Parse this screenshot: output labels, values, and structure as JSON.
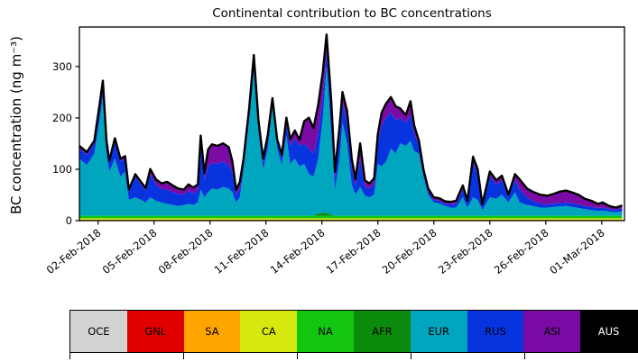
{
  "figure": {
    "title": "Continental contribution to BC concentrations",
    "ylabel": "BC concentration (ng m⁻³)"
  },
  "legend": {
    "entries": [
      {
        "label": "OCE",
        "color": "#d3d3d3",
        "text_color": "#000000"
      },
      {
        "label": "GNL",
        "color": "#e00000",
        "text_color": "#000000"
      },
      {
        "label": "SA",
        "color": "#ffa500",
        "text_color": "#000000"
      },
      {
        "label": "CA",
        "color": "#d6e80e",
        "text_color": "#000000"
      },
      {
        "label": "NA",
        "color": "#11c511",
        "text_color": "#000000"
      },
      {
        "label": "AFR",
        "color": "#0b8a0b",
        "text_color": "#000000"
      },
      {
        "label": "EUR",
        "color": "#00a5be",
        "text_color": "#000000"
      },
      {
        "label": "RUS",
        "color": "#0834e0",
        "text_color": "#000000"
      },
      {
        "label": "ASI",
        "color": "#7a0ba5",
        "text_color": "#000000"
      },
      {
        "label": "AUS",
        "color": "#000000",
        "text_color": "#ffffff"
      }
    ]
  },
  "chart_data": {
    "type": "area",
    "stacked": true,
    "title": "Continental contribution to BC concentrations",
    "xlabel": "",
    "ylabel": "BC concentration (ng m⁻³)",
    "grid": false,
    "legend_position": "bottom",
    "outline_color": "#000000",
    "ylim": [
      0,
      377
    ],
    "yticks": [
      0,
      100,
      200,
      300
    ],
    "xlim_days": [
      0,
      29.22
    ],
    "xtick_days": [
      1,
      4,
      7,
      10,
      13,
      16,
      19,
      22,
      25,
      28
    ],
    "xtick_labels": [
      "02-Feb-2018",
      "05-Feb-2018",
      "08-Feb-2018",
      "11-Feb-2018",
      "14-Feb-2018",
      "17-Feb-2018",
      "20-Feb-2018",
      "23-Feb-2018",
      "26-Feb-2018",
      "01-Mar-2018"
    ],
    "x_days": [
      0,
      0.4,
      0.8,
      1.1,
      1.26,
      1.45,
      1.6,
      1.9,
      2.2,
      2.45,
      2.65,
      3.0,
      3.3,
      3.55,
      3.8,
      4.1,
      4.4,
      4.7,
      5.0,
      5.3,
      5.6,
      5.85,
      6.1,
      6.35,
      6.5,
      6.7,
      6.9,
      7.1,
      7.4,
      7.7,
      8.0,
      8.2,
      8.4,
      8.6,
      8.8,
      9.1,
      9.35,
      9.6,
      9.85,
      10.1,
      10.35,
      10.6,
      10.85,
      11.1,
      11.3,
      11.55,
      11.8,
      12.05,
      12.3,
      12.55,
      12.8,
      13.05,
      13.25,
      13.5,
      13.7,
      13.95,
      14.1,
      14.35,
      14.6,
      14.8,
      15.05,
      15.3,
      15.55,
      15.8,
      16.0,
      16.2,
      16.45,
      16.7,
      16.95,
      17.2,
      17.5,
      17.75,
      17.95,
      18.2,
      18.45,
      18.7,
      19.0,
      19.3,
      19.6,
      19.9,
      20.2,
      20.55,
      20.8,
      21.1,
      21.35,
      21.6,
      22.0,
      22.35,
      22.65,
      23.0,
      23.35,
      23.6,
      24.0,
      24.3,
      24.7,
      25.1,
      25.45,
      25.75,
      26.1,
      26.45,
      26.75,
      27.1,
      27.45,
      27.8,
      28.05,
      28.4,
      28.75,
      29.1
    ],
    "series": [
      {
        "name": "OCE",
        "color": "#d3d3d3",
        "values": 0.3
      },
      {
        "name": "GNL",
        "color": "#e00000",
        "values": 0.2
      },
      {
        "name": "SA",
        "color": "#ffa500",
        "values": 1.5
      },
      {
        "name": "CA",
        "color": "#d6e80e",
        "values": 2.5
      },
      {
        "name": "NA",
        "color": "#11c511",
        "values": 5
      },
      {
        "name": "AFR",
        "color": "#0b8a0b",
        "values": {
          "default": 0,
          "overrides": {
            "50": 4,
            "51": 6,
            "52": 5,
            "53": 2
          }
        }
      },
      {
        "name": "EUR",
        "color": "#00a5be",
        "values": [
          111,
          99,
          121,
          191,
          231,
          121,
          86,
          111,
          76,
          86,
          31,
          36,
          31,
          26,
          36,
          29,
          26,
          23,
          21,
          19,
          21,
          23,
          21,
          26,
          51,
          36,
          46,
          53,
          51,
          56,
          53,
          46,
          26,
          36,
          91,
          186,
          281,
          161,
          91,
          131,
          213,
          131,
          99,
          156,
          101,
          111,
          96,
          101,
          81,
          76,
          107,
          185,
          286,
          159,
          51,
          111,
          181,
          141,
          61,
          41,
          56,
          39,
          36,
          41,
          101,
          96,
          106,
          131,
          121,
          141,
          136,
          146,
          126,
          121,
          76,
          41,
          26,
          24,
          19,
          16,
          16,
          36,
          16,
          36,
          31,
          11,
          36,
          33,
          41,
          26,
          46,
          26,
          21,
          19,
          16,
          16,
          17,
          18,
          19,
          17,
          15,
          13,
          11,
          9,
          10,
          8,
          7,
          8
        ]
      },
      {
        "name": "RUS",
        "color": "#0834e0",
        "values": [
          20,
          20,
          20,
          25,
          26,
          20,
          17,
          35,
          30,
          25,
          16,
          40,
          30,
          23,
          45,
          32,
          25,
          28,
          25,
          24,
          20,
          26,
          22,
          25,
          80,
          35,
          50,
          50,
          50,
          50,
          46,
          40,
          15,
          17,
          12,
          15,
          22,
          15,
          12,
          18,
          10,
          10,
          12,
          20,
          35,
          40,
          40,
          40,
          50,
          45,
          50,
          40,
          30,
          35,
          20,
          40,
          40,
          40,
          30,
          18,
          55,
          17,
          17,
          20,
          40,
          80,
          85,
          70,
          65,
          50,
          45,
          50,
          35,
          15,
          7,
          6,
          5,
          5,
          5,
          6,
          7,
          15,
          7,
          67,
          50,
          6,
          41,
          28,
          28,
          10,
          25,
          25,
          15,
          10,
          8,
          6,
          7,
          7,
          7,
          7,
          7,
          6,
          6,
          6,
          6,
          5,
          5,
          6
        ]
      },
      {
        "name": "ASI",
        "color": "#7a0ba5",
        "values": [
          5,
          5,
          5,
          5,
          6,
          5,
          4,
          5,
          5,
          5,
          4,
          5,
          5,
          5,
          10,
          10,
          12,
          15,
          13,
          10,
          10,
          12,
          12,
          10,
          25,
          12,
          33,
          36,
          35,
          35,
          35,
          20,
          10,
          13,
          8,
          8,
          10,
          10,
          8,
          9,
          6,
          8,
          8,
          15,
          13,
          15,
          12,
          43,
          60,
          50,
          55,
          50,
          32,
          27,
          15,
          25,
          20,
          23,
          20,
          12,
          30,
          13,
          10,
          12,
          18,
          25,
          28,
          30,
          27,
          18,
          15,
          27,
          15,
          10,
          6,
          6,
          5,
          5,
          4,
          5,
          6,
          8,
          6,
          12,
          10,
          5,
          9,
          8,
          9,
          5,
          10,
          20,
          17,
          18,
          17,
          17,
          19,
          22,
          23,
          21,
          19,
          14,
          12,
          8,
          10,
          6,
          4,
          6
        ]
      },
      {
        "name": "AUS",
        "color": "#000000",
        "values": 0
      }
    ]
  }
}
